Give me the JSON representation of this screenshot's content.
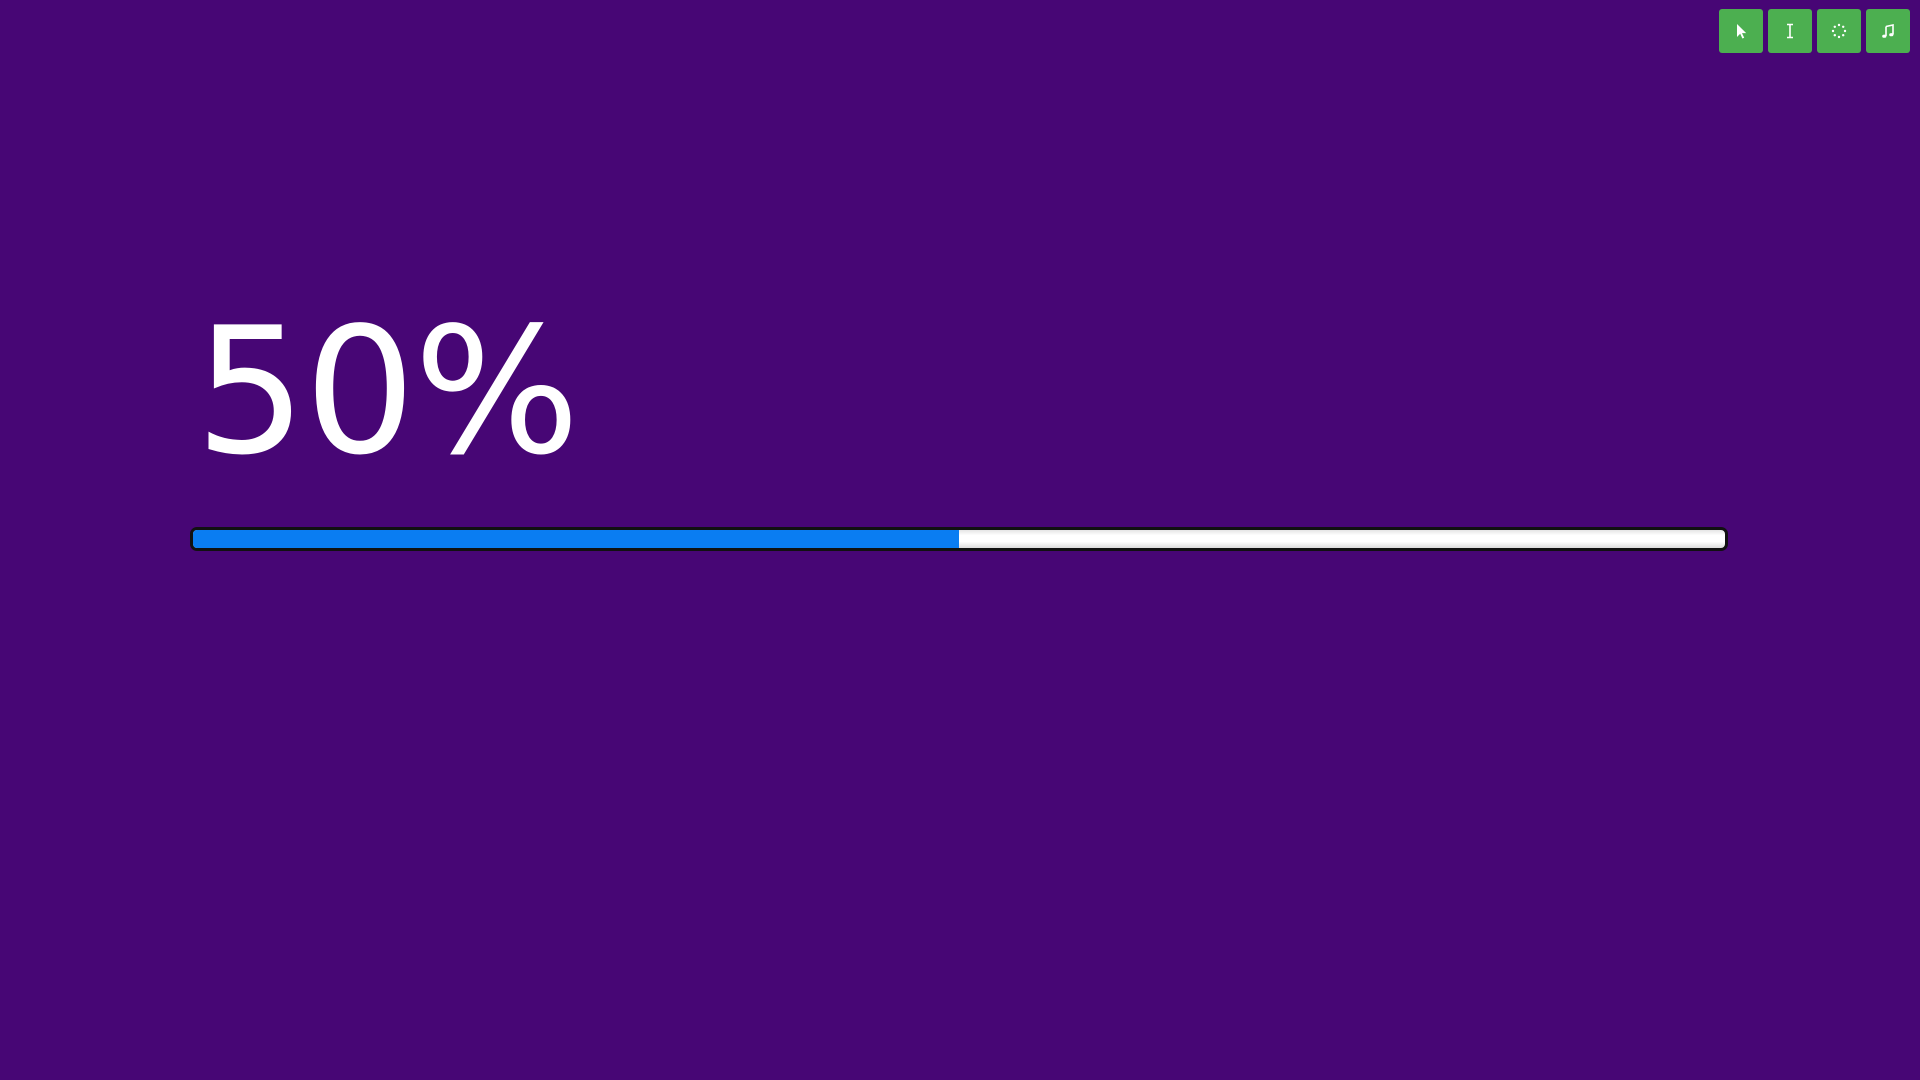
{
  "colors": {
    "background": "#470675",
    "toolbar_button": "#4caf50",
    "progress_fill": "#0a7df2",
    "text": "#ffffff"
  },
  "toolbar": {
    "buttons": [
      {
        "icon": "cursor-icon"
      },
      {
        "icon": "text-cursor-icon"
      },
      {
        "icon": "spinner-icon"
      },
      {
        "icon": "music-note-icon"
      }
    ]
  },
  "progress": {
    "label": "50%",
    "value": 0.5
  }
}
